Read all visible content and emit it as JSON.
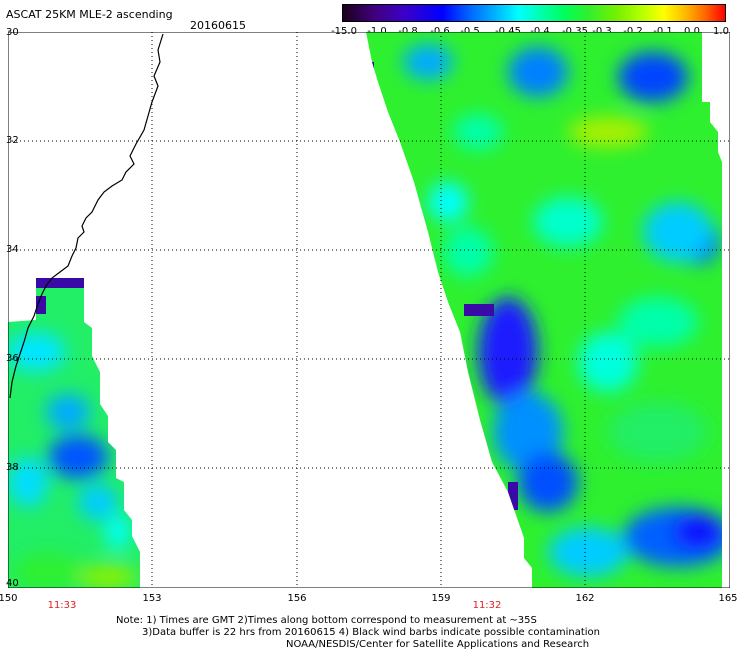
{
  "header": {
    "title": "ASCAT 25KM MLE-2 ascending",
    "date": "20160615"
  },
  "colorbar": {
    "labels": [
      "-15.0",
      "-1.0",
      "-0.8",
      "-0.6",
      "-0.5",
      "-0.45",
      "-0.4",
      "-0.35",
      "-0.3",
      "-0.2",
      "-0.1",
      "0.0",
      "1.0"
    ]
  },
  "axes": {
    "lat_labels": [
      "30",
      "32",
      "34",
      "36",
      "38",
      "40"
    ],
    "lon_labels": [
      "150",
      "153",
      "156",
      "159",
      "162",
      "165"
    ]
  },
  "passes": {
    "left_time": "11:33",
    "right_time": "11:32"
  },
  "footer": {
    "note_line1": "Note: 1) Times are GMT 2)Times along bottom correspond to measurement at ~35S",
    "note_line2": "3)Data buffer is 22 hrs from 20160615 4) Black wind barbs indicate possible contamination",
    "note_line3": "NOAA/NESDIS/Center for Satellite Applications and Research"
  },
  "colors": {
    "background": "#ffffff",
    "grid": "#000000",
    "coast": "#000000",
    "pass_time": "#dd2222"
  }
}
